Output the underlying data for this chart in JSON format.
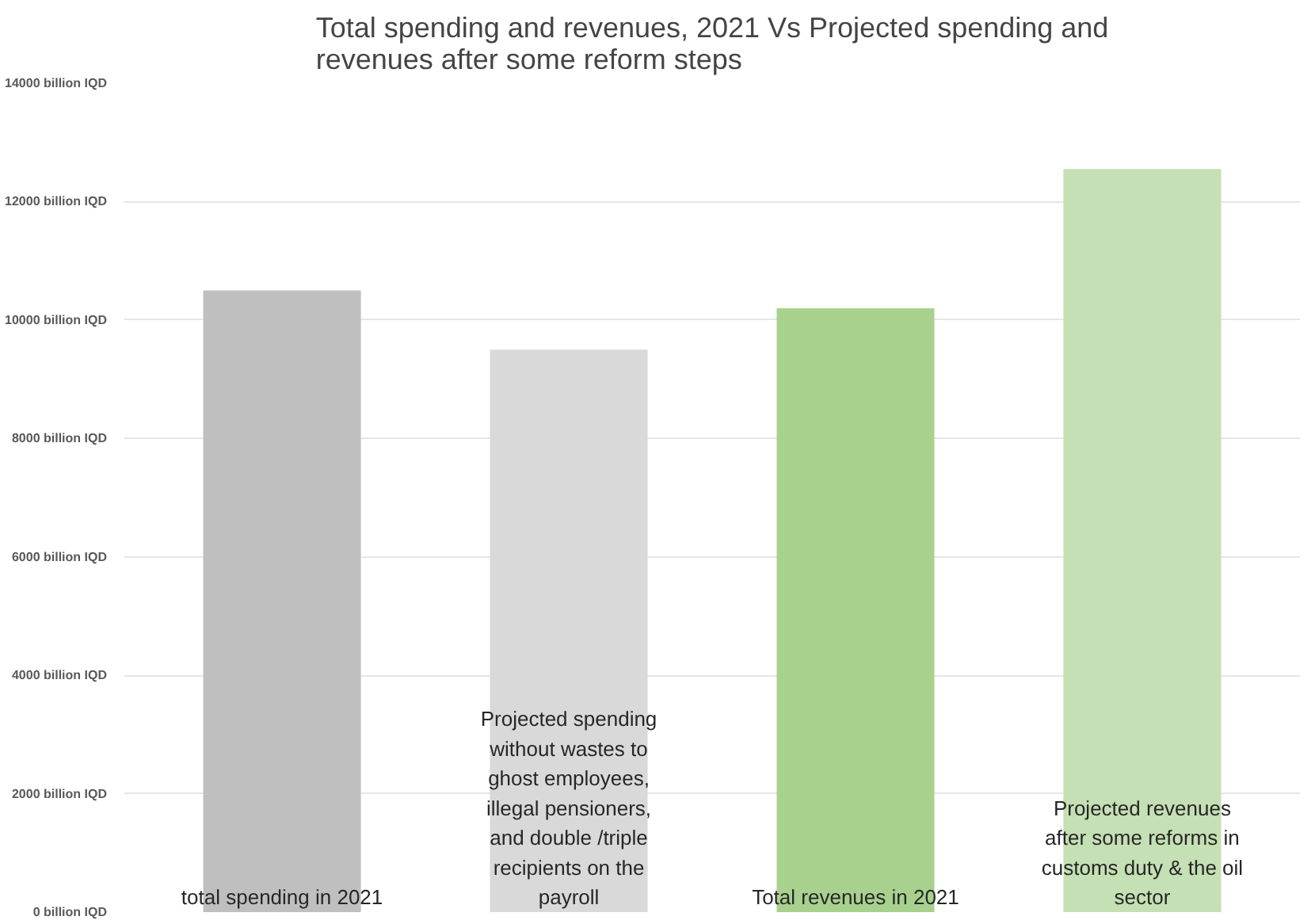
{
  "chart_data": {
    "type": "bar",
    "title": "Total spending and revenues, 2021 Vs Projected spending and revenues after some reform steps",
    "categories": [
      "total spending in 2021",
      "Projected spending without wastes to ghost employees, illegal pensioners, and double /triple recipients on the payroll",
      "Total revenues in 2021",
      "Projected revenues after some reforms in customs duty & the oil sector"
    ],
    "values": [
      10500,
      9500,
      10200,
      12550
    ],
    "colors": [
      "#bfbfbf",
      "#d9d9d9",
      "#a9d18e",
      "#c5e0b4"
    ],
    "ylim": [
      0,
      14000
    ],
    "yticks": [
      {
        "value": 0,
        "label": "0 billion IQD"
      },
      {
        "value": 2000,
        "label": "2000 billion IQD"
      },
      {
        "value": 4000,
        "label": "4000 billion IQD"
      },
      {
        "value": 6000,
        "label": "6000 billion IQD"
      },
      {
        "value": 8000,
        "label": "8000 billion IQD"
      },
      {
        "value": 10000,
        "label": "10000 billion IQD"
      },
      {
        "value": 12000,
        "label": "12000 billion IQD"
      },
      {
        "value": 14000,
        "label": "14000 billion IQD"
      }
    ],
    "grid": "y"
  }
}
